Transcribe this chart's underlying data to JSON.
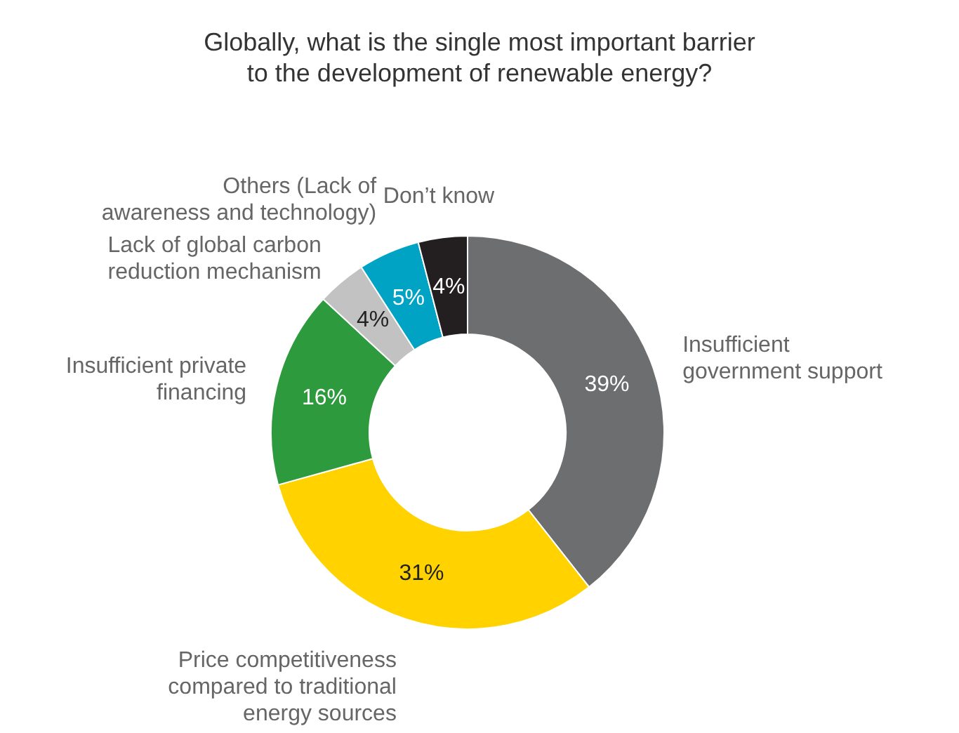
{
  "chart_data": {
    "type": "donut",
    "title": "Globally, what is the single most important barrier\nto the development of renewable energy?",
    "categories": [
      "Insufficient\ngovernment support",
      "Price competitiveness\ncompared to traditional\nenergy sources",
      "Insufficient private\nfinancing",
      "Lack of global carbon\nreduction mechanism",
      "Others (Lack of\nawareness and technology)",
      "Don’t know"
    ],
    "values": [
      39,
      31,
      16,
      4,
      5,
      4
    ],
    "colors": [
      "#6d6e70",
      "#ffd200",
      "#2e9a3e",
      "#c2c2c2",
      "#00a3c4",
      "#231f20"
    ],
    "value_labels": [
      "39%",
      "31%",
      "16%",
      "4%",
      "5%",
      "4%"
    ]
  }
}
